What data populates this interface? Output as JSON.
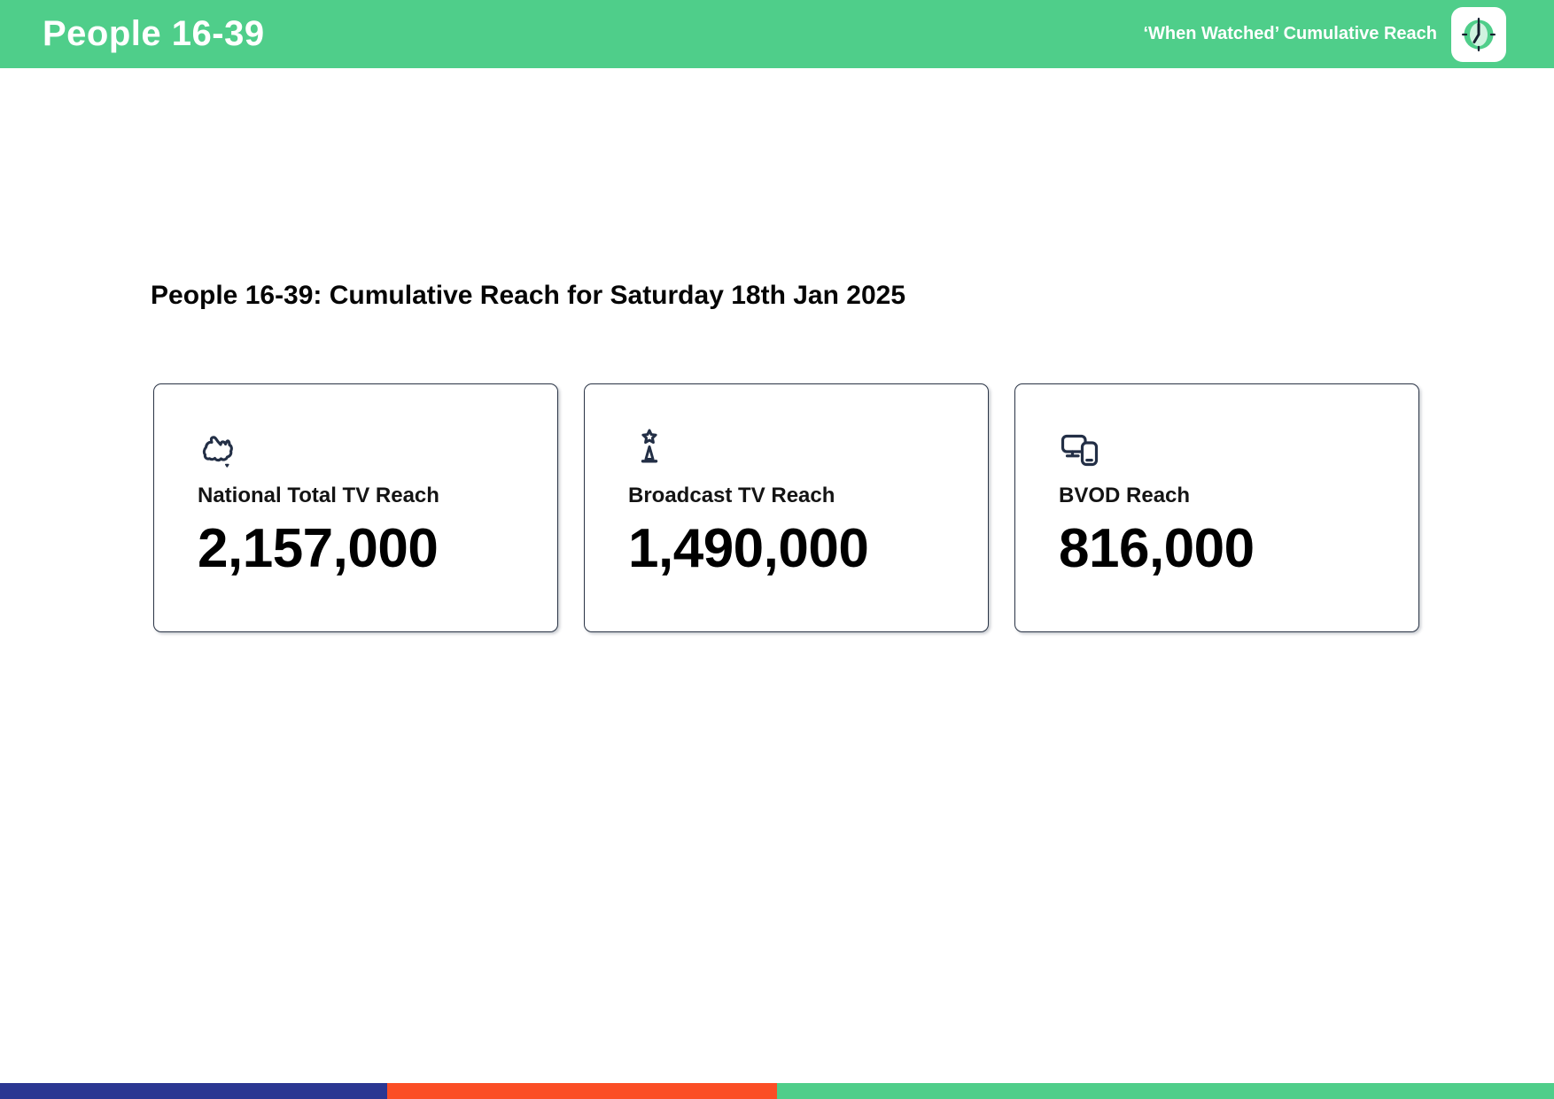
{
  "header": {
    "title": "People 16-39",
    "subtitle": "‘When Watched’ Cumulative Reach",
    "app_icon": "clock-icon"
  },
  "main": {
    "heading": "People 16-39: Cumulative Reach for Saturday 18th Jan 2025",
    "cards": [
      {
        "icon": "australia-map-icon",
        "label": "National Total TV Reach",
        "value": "2,157,000"
      },
      {
        "icon": "broadcast-tower-icon",
        "label": "Broadcast TV Reach",
        "value": "1,490,000"
      },
      {
        "icon": "devices-icon",
        "label": "BVOD Reach",
        "value": "816,000"
      }
    ]
  },
  "footer_bar": {
    "segments": [
      {
        "name": "blue",
        "color": "#2B3792",
        "width_pct": 24.92
      },
      {
        "name": "orange",
        "color": "#FB4E25",
        "width_pct": 25.08
      },
      {
        "name": "green",
        "color": "#4FCE8A",
        "width_pct": 50.0
      }
    ]
  },
  "colors": {
    "brand_green": "#4FCE8A",
    "icon_navy": "#232F46",
    "card_border": "#2A3446"
  }
}
